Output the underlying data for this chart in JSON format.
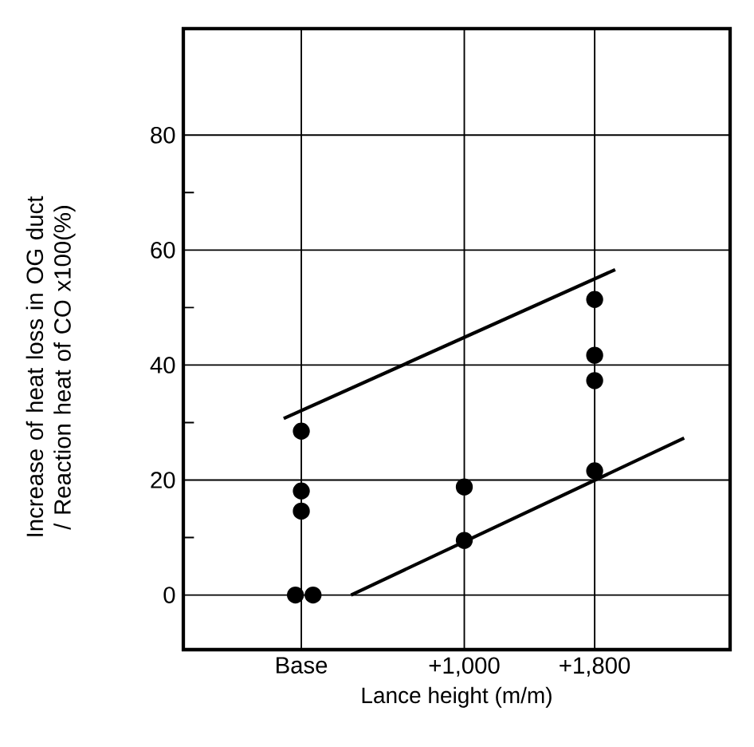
{
  "chart_data": {
    "type": "scatter",
    "xlabel": "Lance height (m/m)",
    "ylabel": "Increase of heat loss in OG duct / Reaction heat of CO x100(%)",
    "xlim": [
      -724,
      2631
    ],
    "xticks": [
      {
        "value": 0,
        "label": "Base"
      },
      {
        "value": 1000,
        "label": "+1,000"
      },
      {
        "value": 1800,
        "label": "+1,800"
      }
    ],
    "ylim": [
      -9.5,
      98.5
    ],
    "yticks": [
      0,
      {
        "value": 10,
        "label": null
      },
      20,
      {
        "value": 30,
        "label": null
      },
      40,
      {
        "value": 50,
        "label": null
      },
      60,
      {
        "value": 70,
        "label": null
      },
      80
    ],
    "grid": true,
    "marker": "circle",
    "series": [
      {
        "color": "#000000",
        "x": [
          0,
          0,
          -36,
          72,
          1000,
          1000,
          1800,
          1800,
          1800,
          1800
        ],
        "values": [
          18.1,
          14.6,
          0,
          0,
          18.8,
          9.5,
          51.4,
          41.7,
          37.3,
          21.6
        ]
      },
      {
        "color": "#000000",
        "x": [
          0
        ],
        "values": [
          28.5
        ]
      },
      {
        "type": "line",
        "color": "#000000",
        "marker": "none",
        "x": [
          -108,
          1926
        ],
        "values": [
          30.7,
          56.6
        ]
      },
      {
        "type": "line",
        "color": "#000000",
        "marker": "none",
        "x": [
          305,
          2349
        ],
        "values": [
          0,
          27.3
        ]
      }
    ]
  }
}
